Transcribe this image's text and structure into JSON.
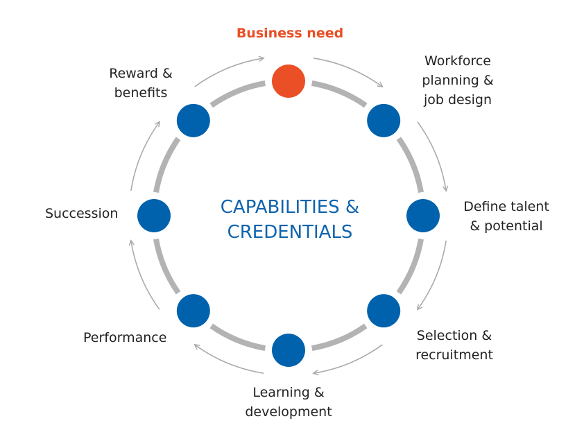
{
  "center_text": "CAPABILITIES &\nCREDENTIALS",
  "colors": {
    "node": "#0062ad",
    "highlight": "#ea4f25",
    "ring": "#b3b3b3",
    "arrow": "#aaaaaa",
    "center_text": "#0e63ad",
    "label": "#222222"
  },
  "stages": [
    {
      "id": "business-need",
      "label": "Business need",
      "highlight": true
    },
    {
      "id": "workforce-planning",
      "label": "Workforce\nplanning &\njob design",
      "highlight": false
    },
    {
      "id": "define-talent",
      "label": "Define talent\n& potential",
      "highlight": false
    },
    {
      "id": "selection",
      "label": "Selection &\nrecruitment",
      "highlight": false
    },
    {
      "id": "learning",
      "label": "Learning &\ndevelopment",
      "highlight": false
    },
    {
      "id": "performance",
      "label": "Performance",
      "highlight": false
    },
    {
      "id": "succession",
      "label": "Succession",
      "highlight": false
    },
    {
      "id": "reward",
      "label": "Reward &\nbenefits",
      "highlight": false
    }
  ]
}
